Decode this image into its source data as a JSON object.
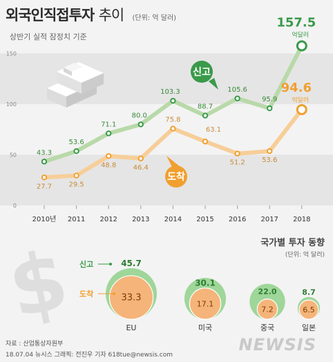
{
  "header": {
    "title_bold": "외국인직접투자",
    "title_light": "추이",
    "unit": "(단위: 억 달러)",
    "subtitle": "상반기 실적 잠정치 기준"
  },
  "colors": {
    "signed": "#3a9a4a",
    "signed_line": "#b9d9a9",
    "arrived": "#f0a030",
    "arrived_line": "#f7ce99",
    "band": "#e5e5e5",
    "axis_text": "#888888"
  },
  "chart_data": {
    "type": "line",
    "title": "외국인직접투자 추이",
    "subtitle": "상반기 실적 잠정치 기준",
    "unit": "(단위: 억 달러)",
    "x": [
      "2010년",
      "2011",
      "2012",
      "2013",
      "2014",
      "2015",
      "2016",
      "2017",
      "2018"
    ],
    "yticks": [
      "0",
      "50",
      "100",
      "150"
    ],
    "ylim": [
      0,
      160
    ],
    "series": [
      {
        "name": "신고",
        "values": [
          43.3,
          53.6,
          71.1,
          80.0,
          103.3,
          88.7,
          105.6,
          95.9,
          157.5
        ],
        "labels": [
          "43.3",
          "53.6",
          "71.1",
          "80.0",
          "103.3",
          "88.7",
          "105.6",
          "95.9",
          "157.5"
        ]
      },
      {
        "name": "도착",
        "values": [
          27.7,
          29.5,
          48.8,
          46.4,
          75.8,
          63.1,
          51.2,
          53.6,
          94.6
        ],
        "labels": [
          "27.7",
          "29.5",
          "48.8",
          "46.4",
          "75.8",
          "63.1",
          "51.2",
          "53.6",
          "94.6"
        ]
      }
    ],
    "last_value_unit": "억달러",
    "country_chart": {
      "type": "bubble",
      "title": "국가별 투자 동향",
      "unit": "(단위: 억 달러)",
      "series_labels": {
        "signed": "신고",
        "arrived": "도착"
      },
      "categories": [
        "EU",
        "미국",
        "중국",
        "일본"
      ],
      "signed": [
        45.7,
        30.1,
        22.0,
        8.7
      ],
      "arrived": [
        33.3,
        17.1,
        7.2,
        6.5
      ],
      "signed_labels": [
        "45.7",
        "30.1",
        "22.0",
        "8.7"
      ],
      "arrived_labels": [
        "33.3",
        "17.1",
        "7.2",
        "6.5"
      ]
    }
  },
  "footer": {
    "source": "자료 : 산업통상자원부",
    "credit": "18.07.04 뉴시스 그래픽: 전진우 기자 618tue@newsis.com",
    "brand": "NEWSIS"
  }
}
